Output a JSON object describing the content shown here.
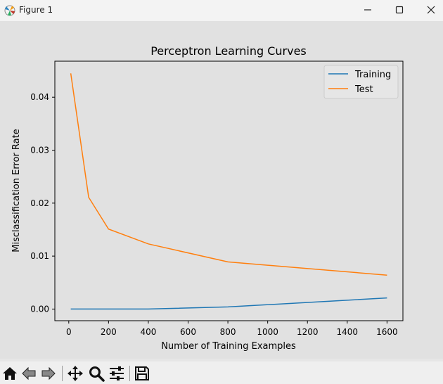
{
  "window": {
    "title": "Figure 1"
  },
  "toolbar": {
    "items": [
      {
        "icon": "home-icon",
        "label": "Home"
      },
      {
        "icon": "back-arrow-icon",
        "label": "Back"
      },
      {
        "icon": "forward-arrow-icon",
        "label": "Forward"
      },
      {
        "icon": "pan-icon",
        "label": "Pan"
      },
      {
        "icon": "zoom-icon",
        "label": "Zoom"
      },
      {
        "icon": "subplots-config-icon",
        "label": "Configure subplots"
      },
      {
        "icon": "save-icon",
        "label": "Save"
      }
    ]
  },
  "chart_data": {
    "type": "line",
    "title": "Perceptron Learning Curves",
    "xlabel": "Number of Training Examples",
    "ylabel": "Misclassification Error Rate",
    "xlim": [
      -70,
      1680
    ],
    "ylim": [
      -0.0022,
      0.0468
    ],
    "x_ticks": [
      0,
      200,
      400,
      600,
      800,
      1000,
      1200,
      1400,
      1600
    ],
    "x_tick_labels": [
      "0",
      "200",
      "400",
      "600",
      "800",
      "1000",
      "1200",
      "1400",
      "1600"
    ],
    "y_ticks": [
      0.0,
      0.01,
      0.02,
      0.03,
      0.04
    ],
    "y_tick_labels": [
      "0.00",
      "0.01",
      "0.02",
      "0.03",
      "0.04"
    ],
    "grid": false,
    "legend_position": "top-right",
    "series": [
      {
        "name": "Training",
        "color": "#1f77b4",
        "x": [
          10,
          100,
          200,
          400,
          800,
          1600
        ],
        "y": [
          0.0,
          0.0,
          0.0,
          0.0,
          0.0004,
          0.0021
        ]
      },
      {
        "name": "Test",
        "color": "#ff7f0e",
        "x": [
          10,
          100,
          200,
          400,
          800,
          1600
        ],
        "y": [
          0.0445,
          0.0211,
          0.0151,
          0.0123,
          0.0089,
          0.0064
        ]
      }
    ]
  }
}
